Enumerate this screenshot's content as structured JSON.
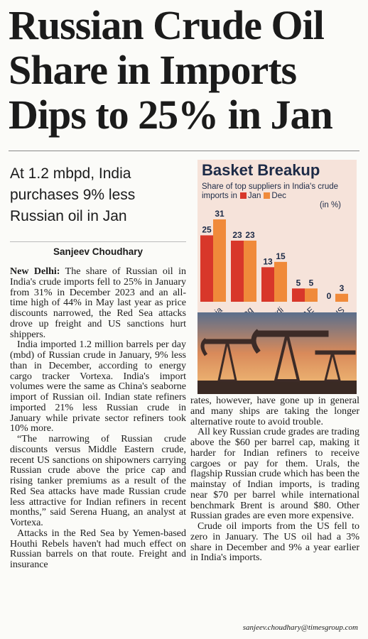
{
  "headline": {
    "lines": [
      "Russian Crude Oil",
      "Share in Imports",
      "Dips to 25% in Jan"
    ]
  },
  "subhead": "At 1.2 mbpd, India purchases 9% less Russian oil in Jan",
  "byline": "Sanjeev Choudhary",
  "chart": {
    "type": "bar",
    "title": "Basket Breakup",
    "subtitle": "Share of top suppliers in India's crude imports in",
    "unit": "(in %)",
    "categories": [
      "Russia",
      "Iraq",
      "Saudi",
      "UAE",
      "US"
    ],
    "series": [
      {
        "name": "Jan",
        "color": "#d8372a",
        "values": [
          25,
          23,
          13,
          5,
          0
        ]
      },
      {
        "name": "Dec",
        "color": "#f08a3a",
        "values": [
          31,
          23,
          15,
          5,
          3
        ]
      }
    ]
  },
  "body": {
    "dateline": "New Delhi:",
    "column1": [
      "The share of Russian oil in India's crude imports fell to 25% in January from 31% in December 2023 and an all-time high of 44% in May last year as price discounts narrowed, the Red Sea attacks drove up freight and US sanctions hurt shippers.",
      "India imported 1.2 million barrels per day (mbd) of Russian crude in January, 9% less than in December, according to energy cargo tracker Vortexa. India's import volumes were the same as China's seaborne import of Russian oil. Indian state refiners imported 21% less Russian crude in January while private sector refiners took 10% more.",
      "“The narrowing of Russian crude discounts versus Middle Eastern crude, recent US sanctions on shipowners carrying Russian crude above the price cap and rising tanker premiums as a result of the Red Sea attacks have made Russian crude less attractive for Indian refiners in recent months,” said Serena Huang, an analyst at Vortexa.",
      "Attacks in the Red Sea by Yemen-based Houthi Rebels haven't had much effect on Russian barrels on that route. Freight and insurance"
    ],
    "column2": [
      "rates, however, have gone up in general and many ships are taking the longer alternative route to avoid trouble.",
      "All key Russian crude grades are trading above the $60 per barrel cap, making it harder for Indian refiners to receive cargoes or pay for them. Urals, the flagship Russian crude which has been the mainstay of Indian imports, is trading near $70 per barrel while international benchmark Brent is around $80. Other Russian grades are even more expensive.",
      "Crude oil imports from the US fell to zero in January. The US oil had a 3% share in December and 9% a year earlier in India's imports."
    ]
  },
  "email": "sanjeev.choudhary@timesgroup.com"
}
